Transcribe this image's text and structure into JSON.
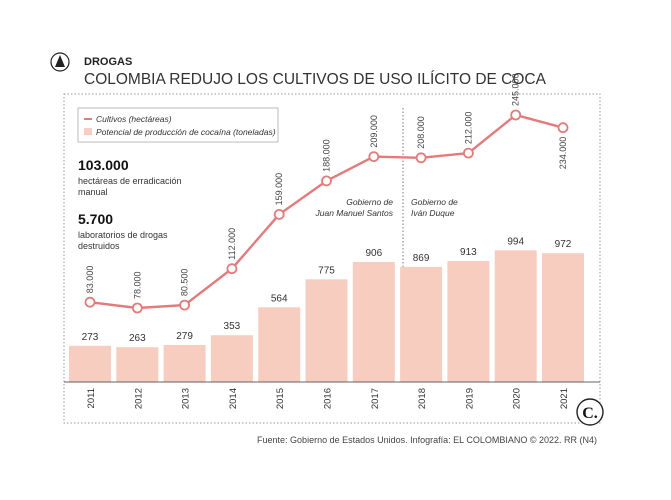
{
  "header": {
    "kicker": "DROGAS",
    "headline": "COLOMBIA REDUJO LOS CULTIVOS DE USO ILÍCITO DE COCA",
    "icon": "pen-nib-icon"
  },
  "legend": {
    "line_label": "Cultivos (hectáreas)",
    "bar_label": "Potencial de producción de cocaína (toneladas)"
  },
  "stats": [
    {
      "value": "103.000",
      "lines": [
        "hectáreas de erradicación",
        "manual"
      ]
    },
    {
      "value": "5.700",
      "lines": [
        "laboratorios de drogas",
        "destruidos"
      ]
    }
  ],
  "periods": [
    {
      "lines": [
        "Gobierno de",
        "Juan Manuel Santos"
      ]
    },
    {
      "lines": [
        "Gobierno de",
        "Iván Duque"
      ]
    }
  ],
  "footer": {
    "source": "Fuente: Gobierno de Estados Unidos. Infografía: EL COLOMBIANO © 2022. RR (N4)",
    "logo_text": "C."
  },
  "colors": {
    "line": "#e27b7b",
    "bar": "#f7cdbf",
    "frame": "#999999"
  },
  "chart_data": {
    "type": "bar",
    "categories": [
      "2011",
      "2012",
      "2013",
      "2014",
      "2015",
      "2016",
      "2017",
      "2018",
      "2019",
      "2020",
      "2021"
    ],
    "series": [
      {
        "name": "Potencial de producción de cocaína (toneladas)",
        "type": "bar",
        "values": [
          273,
          263,
          279,
          353,
          564,
          775,
          906,
          869,
          913,
          994,
          972
        ],
        "labels": [
          "273",
          "263",
          "279",
          "353",
          "564",
          "775",
          "906",
          "869",
          "913",
          "994",
          "972"
        ]
      },
      {
        "name": "Cultivos (hectáreas)",
        "type": "line",
        "values": [
          83000,
          78000,
          80500,
          112000,
          159000,
          188000,
          209000,
          208000,
          212000,
          245000,
          234000
        ],
        "labels": [
          "83.000",
          "78.000",
          "80.500",
          "112.000",
          "159.000",
          "188.000",
          "209.000",
          "208.000",
          "212.000",
          "245.000",
          "234.000"
        ]
      }
    ],
    "xlabel": "",
    "ylabel": "",
    "grid": false,
    "legend_position": "top-left"
  }
}
